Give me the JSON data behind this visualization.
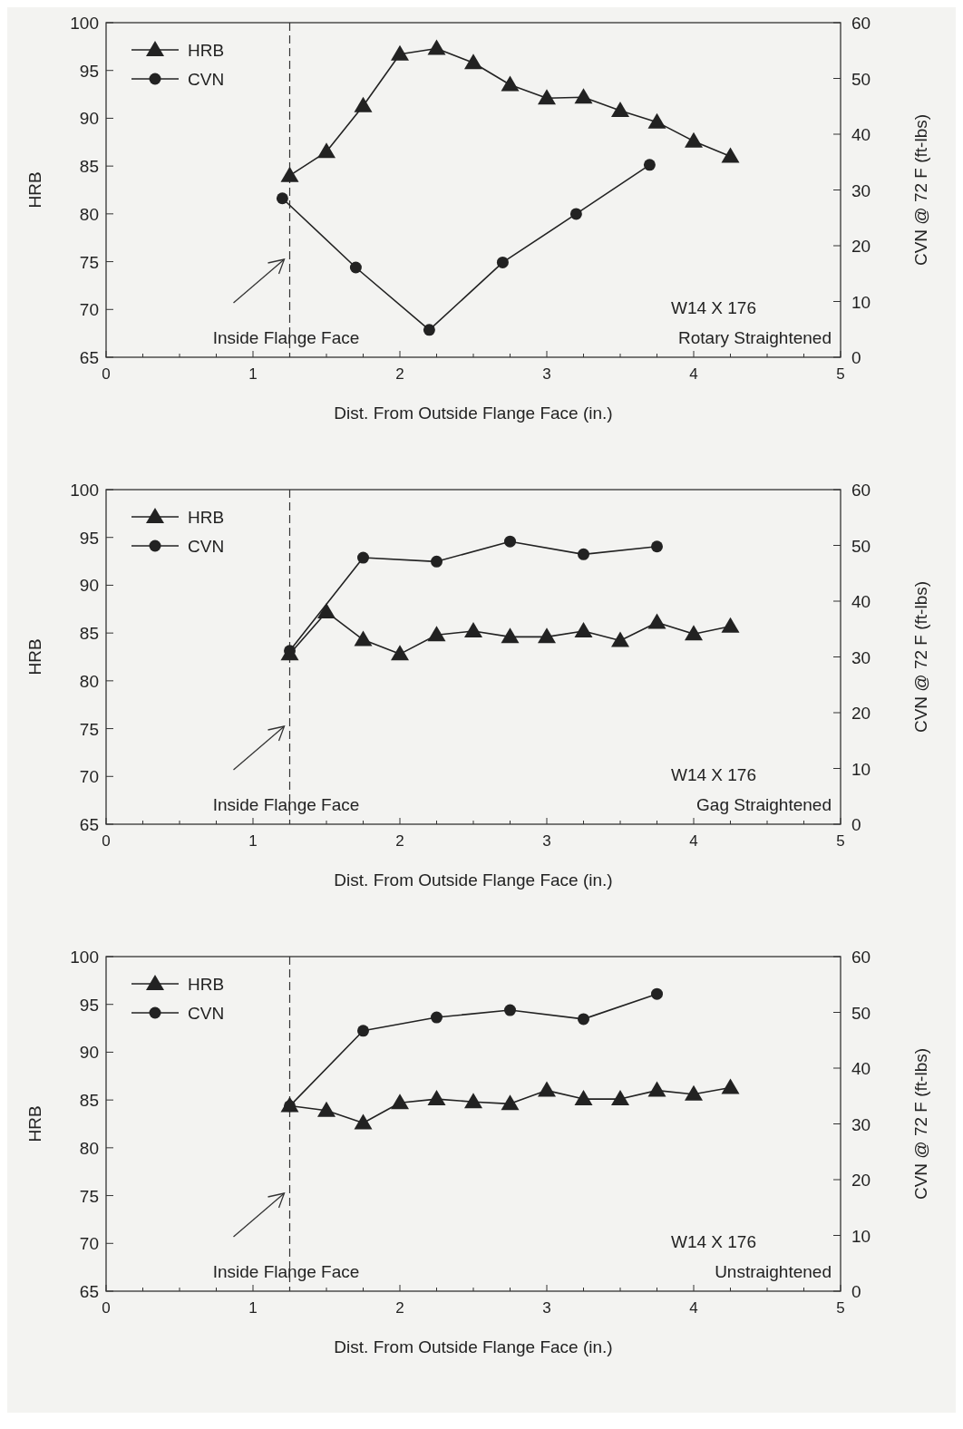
{
  "chart_data": [
    {
      "type": "line",
      "xlabel": "Dist. From Outside Flange Face (in.)",
      "ylabel": "HRB",
      "y2label": "CVN @ 72 F (ft-lbs)",
      "xlim": [
        0,
        5
      ],
      "xticks": [
        0,
        {
          "value": 0.25,
          "label": null
        },
        {
          "value": 0.5,
          "label": null
        },
        {
          "value": 0.75,
          "label": null
        },
        1,
        {
          "value": 1.25,
          "label": null
        },
        {
          "value": 1.5,
          "label": null
        },
        {
          "value": 1.75,
          "label": null
        },
        2,
        {
          "value": 2.25,
          "label": null
        },
        {
          "value": 2.5,
          "label": null
        },
        {
          "value": 2.75,
          "label": null
        },
        3,
        {
          "value": 3.25,
          "label": null
        },
        {
          "value": 3.5,
          "label": null
        },
        {
          "value": 3.75,
          "label": null
        },
        4,
        {
          "value": 4.25,
          "label": null
        },
        {
          "value": 4.5,
          "label": null
        },
        {
          "value": 4.75,
          "label": null
        },
        5
      ],
      "ylim": [
        65,
        100
      ],
      "yticks": [
        65,
        70,
        75,
        80,
        85,
        90,
        95,
        100
      ],
      "y2lim": [
        0,
        60
      ],
      "y2ticks": [
        0,
        10,
        20,
        30,
        40,
        50,
        60
      ],
      "legend": "top left",
      "grid": false,
      "series": [
        {
          "name": "HRB",
          "color": "#222222",
          "marker": "triangle",
          "x": [
            1.25,
            1.5,
            1.75,
            2,
            2.25,
            2.5,
            2.75,
            3,
            3.25,
            3.5,
            3.75,
            4,
            4.25
          ],
          "values": [
            84.0,
            86.5,
            91.3,
            96.7,
            97.3,
            95.8,
            93.5,
            92.1,
            92.2,
            90.8,
            89.6,
            87.6,
            86.0
          ]
        },
        {
          "name": "CVN",
          "color": "#222222",
          "marker": "circle",
          "axis": "y2",
          "x": [
            1.2,
            1.7,
            2.2,
            2.7,
            3.2,
            3.7
          ],
          "values": [
            28.5,
            16.1,
            4.9,
            17.0,
            25.7,
            34.5
          ]
        }
      ],
      "ref_lines": [
        {
          "axis": "x",
          "value": 1.25,
          "label": "Inside Flange Face",
          "line_style": "dashed"
        }
      ],
      "annotations": [
        "W14 X 176",
        "Rotary Straightened"
      ]
    },
    {
      "type": "line",
      "xlabel": "Dist. From Outside Flange Face (in.)",
      "ylabel": "HRB",
      "y2label": "CVN @ 72 F (ft-lbs)",
      "xlim": [
        0,
        5
      ],
      "xticks": [
        0,
        {
          "value": 0.25,
          "label": null
        },
        {
          "value": 0.5,
          "label": null
        },
        {
          "value": 0.75,
          "label": null
        },
        1,
        {
          "value": 1.25,
          "label": null
        },
        {
          "value": 1.5,
          "label": null
        },
        {
          "value": 1.75,
          "label": null
        },
        2,
        {
          "value": 2.25,
          "label": null
        },
        {
          "value": 2.5,
          "label": null
        },
        {
          "value": 2.75,
          "label": null
        },
        3,
        {
          "value": 3.25,
          "label": null
        },
        {
          "value": 3.5,
          "label": null
        },
        {
          "value": 3.75,
          "label": null
        },
        4,
        {
          "value": 4.25,
          "label": null
        },
        {
          "value": 4.5,
          "label": null
        },
        {
          "value": 4.75,
          "label": null
        },
        5
      ],
      "ylim": [
        65,
        100
      ],
      "yticks": [
        65,
        70,
        75,
        80,
        85,
        90,
        95,
        100
      ],
      "y2lim": [
        0,
        60
      ],
      "y2ticks": [
        0,
        10,
        20,
        30,
        40,
        50,
        60
      ],
      "legend": "top left",
      "grid": false,
      "series": [
        {
          "name": "HRB",
          "color": "#222222",
          "marker": "triangle",
          "x": [
            1.25,
            1.5,
            1.75,
            2,
            2.25,
            2.5,
            2.75,
            3,
            3.25,
            3.5,
            3.75,
            4,
            4.25
          ],
          "values": [
            82.8,
            87.2,
            84.3,
            82.8,
            84.8,
            85.2,
            84.6,
            84.6,
            85.2,
            84.2,
            86.1,
            84.9,
            85.7
          ]
        },
        {
          "name": "CVN",
          "color": "#222222",
          "marker": "circle",
          "axis": "y2",
          "x": [
            1.25,
            1.75,
            2.25,
            2.75,
            3.25,
            3.75
          ],
          "values": [
            31.1,
            47.8,
            47.1,
            50.7,
            48.4,
            49.8
          ]
        }
      ],
      "ref_lines": [
        {
          "axis": "x",
          "value": 1.25,
          "label": "Inside Flange Face",
          "line_style": "dashed"
        }
      ],
      "annotations": [
        "W14 X 176",
        "Gag Straightened"
      ]
    },
    {
      "type": "line",
      "xlabel": "Dist. From Outside Flange Face (in.)",
      "ylabel": "HRB",
      "y2label": "CVN @ 72 F (ft-lbs)",
      "xlim": [
        0,
        5
      ],
      "xticks": [
        0,
        {
          "value": 0.25,
          "label": null
        },
        {
          "value": 0.5,
          "label": null
        },
        {
          "value": 0.75,
          "label": null
        },
        1,
        {
          "value": 1.25,
          "label": null
        },
        {
          "value": 1.5,
          "label": null
        },
        {
          "value": 1.75,
          "label": null
        },
        2,
        {
          "value": 2.25,
          "label": null
        },
        {
          "value": 2.5,
          "label": null
        },
        {
          "value": 2.75,
          "label": null
        },
        3,
        {
          "value": 3.25,
          "label": null
        },
        {
          "value": 3.5,
          "label": null
        },
        {
          "value": 3.75,
          "label": null
        },
        4,
        {
          "value": 4.25,
          "label": null
        },
        {
          "value": 4.5,
          "label": null
        },
        {
          "value": 4.75,
          "label": null
        },
        5
      ],
      "ylim": [
        65,
        100
      ],
      "yticks": [
        65,
        70,
        75,
        80,
        85,
        90,
        95,
        100
      ],
      "y2lim": [
        0,
        60
      ],
      "y2ticks": [
        0,
        10,
        20,
        30,
        40,
        50,
        60
      ],
      "legend": "top left",
      "grid": false,
      "series": [
        {
          "name": "HRB",
          "color": "#222222",
          "marker": "triangle",
          "x": [
            1.25,
            1.5,
            1.75,
            2,
            2.25,
            2.5,
            2.75,
            3,
            3.25,
            3.5,
            3.75,
            4,
            4.25
          ],
          "values": [
            84.4,
            83.9,
            82.6,
            84.7,
            85.1,
            84.8,
            84.6,
            86.0,
            85.1,
            85.1,
            86.0,
            85.6,
            86.3
          ]
        },
        {
          "name": "CVN",
          "color": "#222222",
          "marker": "circle",
          "axis": "y2",
          "x": [
            1.25,
            1.75,
            2.25,
            2.75,
            3.25,
            3.75
          ],
          "values": [
            33.2,
            46.7,
            49.1,
            50.4,
            48.8,
            53.3
          ]
        }
      ],
      "ref_lines": [
        {
          "axis": "x",
          "value": 1.25,
          "label": "Inside Flange Face",
          "line_style": "dashed"
        }
      ],
      "annotations": [
        "W14 X 176",
        "Unstraightened"
      ]
    }
  ]
}
